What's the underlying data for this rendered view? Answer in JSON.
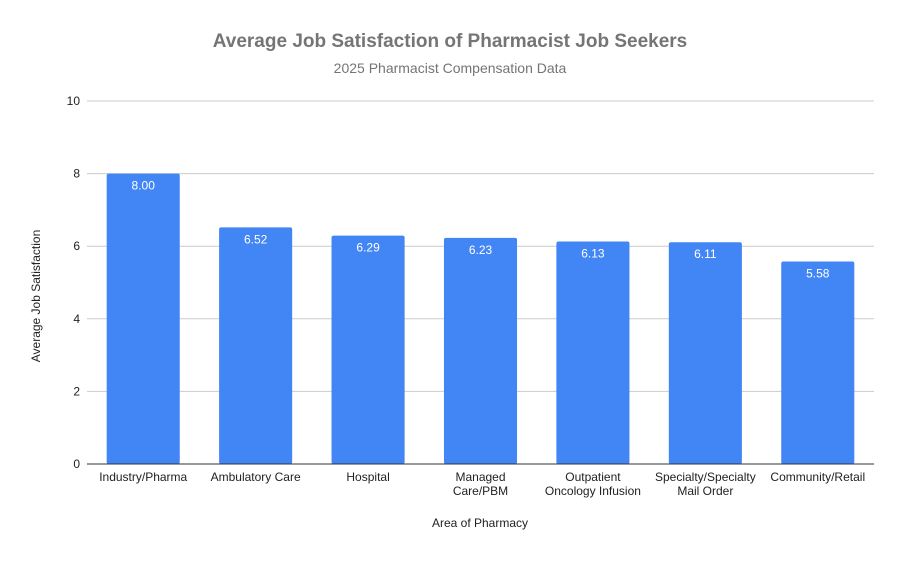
{
  "chart_data": {
    "type": "bar",
    "title": "Average Job Satisfaction of Pharmacist Job Seekers",
    "subtitle": "2025 Pharmacist Compensation Data",
    "xlabel": "Area of Pharmacy",
    "ylabel": "Average Job Satisfaction",
    "ylim": [
      0,
      10
    ],
    "yticks": [
      0,
      2,
      4,
      6,
      8,
      10
    ],
    "categories": [
      [
        "Industry/Pharma"
      ],
      [
        "Ambulatory Care"
      ],
      [
        "Hospital"
      ],
      [
        "Managed",
        "Care/PBM"
      ],
      [
        "Outpatient",
        "Oncology Infusion"
      ],
      [
        "Specialty/Specialty",
        "Mail Order"
      ],
      [
        "Community/Retail"
      ]
    ],
    "values": [
      8.0,
      6.52,
      6.29,
      6.23,
      6.13,
      6.11,
      5.58
    ],
    "data_labels": [
      "8.00",
      "6.52",
      "6.29",
      "6.23",
      "6.13",
      "6.11",
      "5.58"
    ],
    "bar_color": "#4285f4",
    "grid": true,
    "legend": "none"
  }
}
